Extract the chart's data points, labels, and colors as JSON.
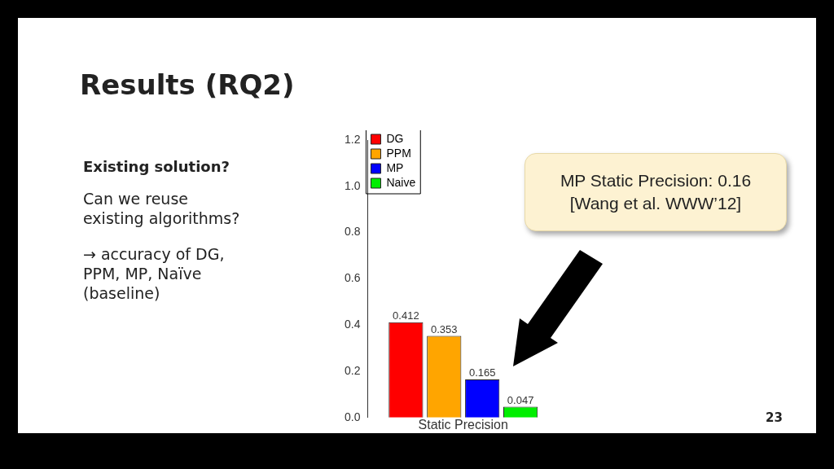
{
  "chart_data": {
    "type": "bar",
    "title": "Results (RQ2)",
    "categories": [
      null
    ],
    "xlabel": "Static Precision",
    "series": [
      {
        "name": "DG",
        "color": "#ff0000",
        "values": [
          0.412
        ]
      },
      {
        "name": "PPM",
        "color": "#ffa500",
        "values": [
          0.353
        ]
      },
      {
        "name": "MP",
        "color": "#0000ff",
        "values": [
          0.165
        ]
      },
      {
        "name": "Naive",
        "color": "#00ee00",
        "values": [
          0.047
        ]
      }
    ],
    "ylim": [
      0,
      1.2
    ],
    "yticks": [
      {
        "value": 0,
        "label": "0.0"
      },
      0.2,
      0.4,
      0.6,
      0.8,
      {
        "value": 1,
        "label": "1.0"
      },
      1.2
    ],
    "data_labels": true,
    "legend": "top left",
    "grid": false,
    "annotations": [
      "Existing solution?",
      "Can we reuse\nexisting algorithms?",
      "→ accuracy of DG,\nPPM, MP, Naïve\n(baseline)",
      "MP Static Precision: 0.16\n[Wang et al. WWW’12]",
      "23"
    ]
  }
}
